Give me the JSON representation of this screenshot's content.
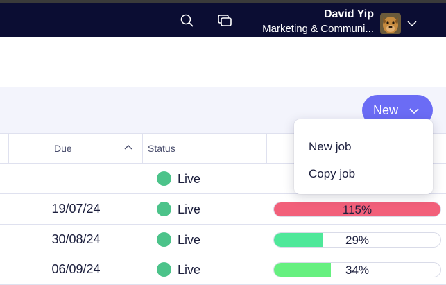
{
  "topbar": {
    "icons": [
      "search-icon",
      "windows-icon",
      "chevron-down-icon"
    ],
    "user": {
      "name": "David Yip",
      "team": "Marketing & Communi..."
    }
  },
  "toolbar": {
    "new_label": "New"
  },
  "table": {
    "columns": [
      "Due",
      "Status"
    ],
    "sort": "ascending",
    "rows": [
      {
        "due": "",
        "status": "Live"
      },
      {
        "due": "19/07/24",
        "status": "Live",
        "progress_label": "115%",
        "progress": 1.15,
        "progress_color": "#f2607a"
      },
      {
        "due": "30/08/24",
        "status": "Live",
        "progress_label": "29%",
        "progress": 0.29,
        "progress_color": "#4fe89a"
      },
      {
        "due": "06/09/24",
        "status": "Live",
        "progress_label": "34%",
        "progress": 0.34,
        "progress_color": "#66f080"
      }
    ]
  },
  "dropdown": {
    "items": [
      "New job",
      "Copy job"
    ]
  },
  "colors": {
    "topbar_bg": "#0b0d33",
    "accent": "#6b6cf5",
    "live": "#4cc38a"
  }
}
